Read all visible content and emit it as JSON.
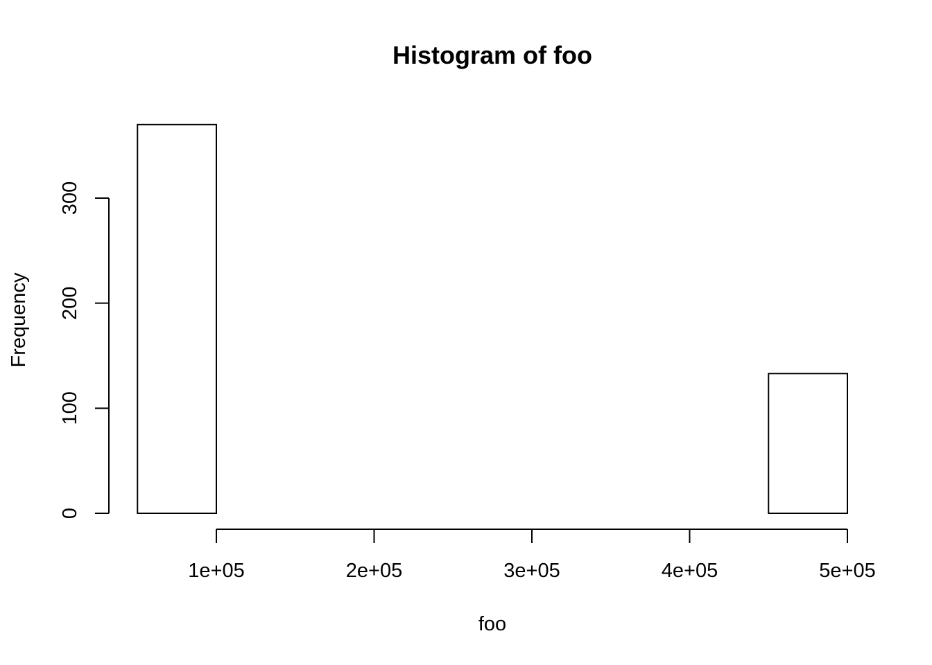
{
  "chart_data": {
    "type": "bar",
    "title": "Histogram of foo",
    "xlabel": "foo",
    "ylabel": "Frequency",
    "bins": [
      {
        "from": 50000,
        "to": 100000,
        "count": 370
      },
      {
        "from": 100000,
        "to": 150000,
        "count": 0
      },
      {
        "from": 150000,
        "to": 200000,
        "count": 0
      },
      {
        "from": 200000,
        "to": 250000,
        "count": 0
      },
      {
        "from": 250000,
        "to": 300000,
        "count": 0
      },
      {
        "from": 300000,
        "to": 350000,
        "count": 0
      },
      {
        "from": 350000,
        "to": 400000,
        "count": 0
      },
      {
        "from": 400000,
        "to": 450000,
        "count": 0
      },
      {
        "from": 450000,
        "to": 500000,
        "count": 133
      }
    ],
    "x_ticks": [
      {
        "value": 100000,
        "label": "1e+05"
      },
      {
        "value": 200000,
        "label": "2e+05"
      },
      {
        "value": 300000,
        "label": "3e+05"
      },
      {
        "value": 400000,
        "label": "4e+05"
      },
      {
        "value": 500000,
        "label": "5e+05"
      }
    ],
    "y_ticks": [
      {
        "value": 0,
        "label": "0"
      },
      {
        "value": 100,
        "label": "100"
      },
      {
        "value": 200,
        "label": "200"
      },
      {
        "value": 300,
        "label": "300"
      }
    ],
    "grid": false,
    "legend": "none"
  }
}
